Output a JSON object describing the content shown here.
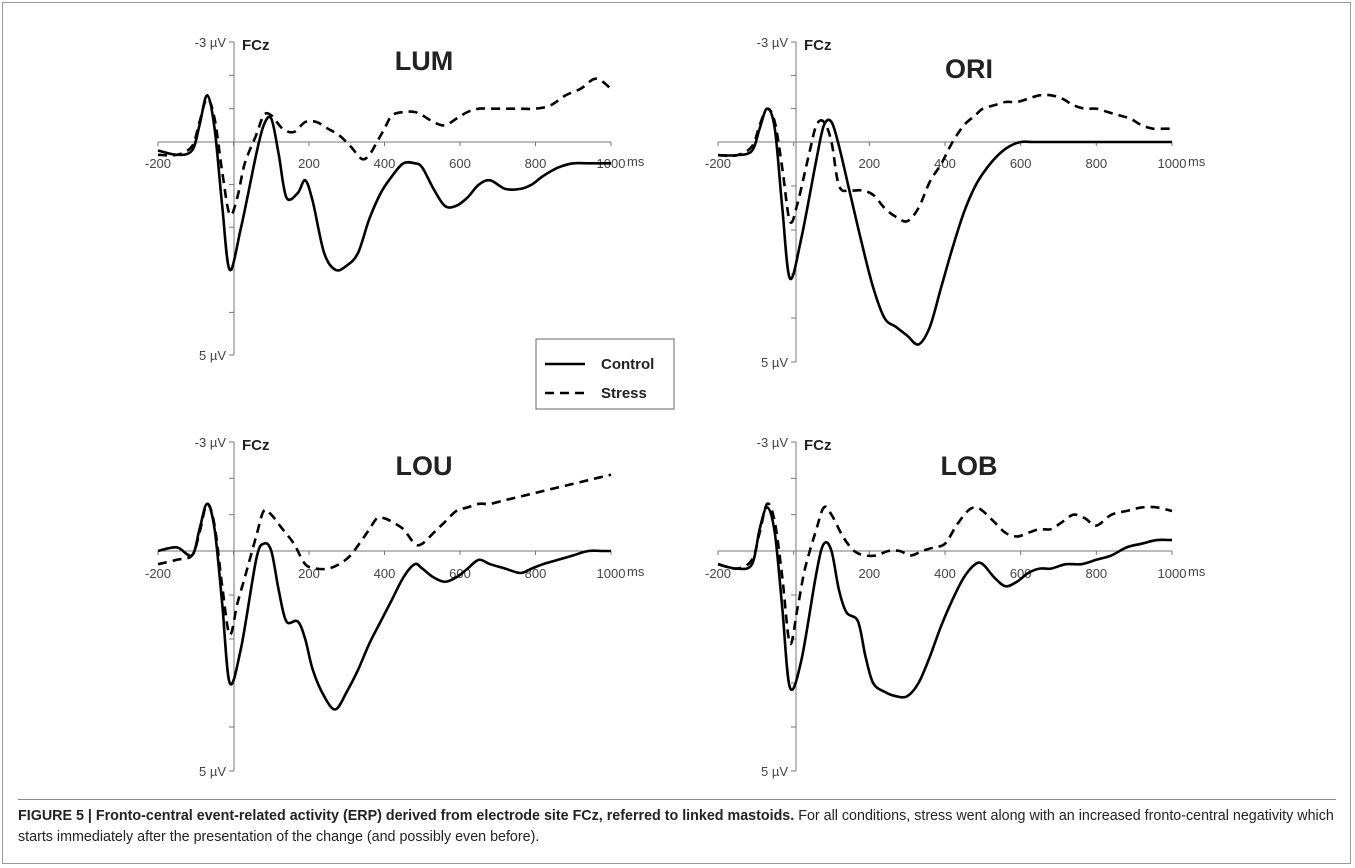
{
  "chart_data": [
    {
      "type": "line",
      "title": "LUM",
      "site_label": "FCz",
      "y_top_label": "-3 µV",
      "y_bottom_label": "5 µV",
      "x_unit": "ms",
      "x_ticks": [
        "-200",
        "200",
        "400",
        "600",
        "800",
        "1000"
      ],
      "ylim": [
        -3,
        5
      ],
      "xlim": [
        -200,
        1000
      ],
      "series": [
        {
          "name": "Control",
          "style": "solid",
          "x": [
            -200,
            -150,
            -110,
            -90,
            -70,
            -50,
            -30,
            -10,
            20,
            60,
            80,
            100,
            120,
            140,
            170,
            190,
            210,
            240,
            270,
            300,
            330,
            360,
            390,
            420,
            450,
            480,
            500,
            530,
            560,
            590,
            620,
            650,
            680,
            720,
            760,
            790,
            820,
            860,
            900,
            940,
            980,
            1000
          ],
          "y": [
            0.2,
            0.3,
            0.2,
            -0.5,
            -1.4,
            -0.4,
            1.5,
            3.0,
            2.0,
            0.3,
            -0.5,
            -0.7,
            0.3,
            1.3,
            1.2,
            0.9,
            1.4,
            2.6,
            3.0,
            2.9,
            2.6,
            1.8,
            1.2,
            0.8,
            0.5,
            0.5,
            0.6,
            1.1,
            1.5,
            1.5,
            1.3,
            1.0,
            0.9,
            1.1,
            1.1,
            1.0,
            0.8,
            0.6,
            0.5,
            0.5,
            0.5,
            0.5
          ]
        },
        {
          "name": "Stress",
          "style": "dashed",
          "x": [
            -200,
            -150,
            -110,
            -90,
            -70,
            -50,
            -30,
            -10,
            10,
            30,
            60,
            80,
            100,
            130,
            160,
            190,
            220,
            250,
            280,
            310,
            340,
            360,
            380,
            400,
            420,
            450,
            480,
            500,
            530,
            560,
            590,
            620,
            650,
            680,
            720,
            760,
            800,
            840,
            880,
            920,
            960,
            1000
          ],
          "y": [
            0.3,
            0.3,
            0.1,
            -0.6,
            -1.3,
            -0.7,
            0.7,
            1.7,
            1.3,
            0.5,
            -0.2,
            -0.8,
            -0.8,
            -0.4,
            -0.3,
            -0.6,
            -0.6,
            -0.4,
            -0.2,
            0.1,
            0.4,
            0.3,
            0.0,
            -0.4,
            -0.8,
            -0.9,
            -0.9,
            -0.8,
            -0.6,
            -0.5,
            -0.7,
            -0.9,
            -1.0,
            -1.0,
            -1.0,
            -1.0,
            -1.0,
            -1.1,
            -1.4,
            -1.6,
            -1.9,
            -1.6
          ]
        }
      ]
    },
    {
      "type": "line",
      "title": "ORI",
      "site_label": "FCz",
      "y_top_label": "-3 µV",
      "y_bottom_label": "5 µV",
      "x_unit": "ms",
      "x_ticks": [
        "-200",
        "200",
        "400",
        "600",
        "800",
        "1000"
      ],
      "ylim": [
        -3,
        5
      ],
      "xlim": [
        -200,
        1000
      ],
      "series": [
        {
          "name": "Control",
          "style": "solid",
          "x": [
            -200,
            -150,
            -110,
            -90,
            -70,
            -50,
            -30,
            -10,
            20,
            60,
            80,
            100,
            120,
            150,
            180,
            210,
            240,
            270,
            300,
            330,
            360,
            390,
            420,
            450,
            480,
            510,
            540,
            570,
            600,
            630,
            660,
            700,
            740,
            780,
            820,
            860,
            900,
            940,
            980,
            1000
          ],
          "y": [
            0.3,
            0.3,
            0.2,
            -0.4,
            -1.0,
            -0.4,
            1.5,
            3.1,
            2.2,
            0.4,
            -0.5,
            -0.6,
            0.1,
            1.2,
            2.3,
            3.3,
            4.0,
            4.2,
            4.4,
            4.6,
            4.2,
            3.3,
            2.4,
            1.6,
            1.0,
            0.6,
            0.3,
            0.1,
            0.0,
            0.0,
            0.0,
            0.0,
            0.0,
            0.0,
            0.0,
            0.0,
            0.0,
            0.0,
            0.0,
            0.0
          ]
        },
        {
          "name": "Stress",
          "style": "dashed",
          "x": [
            -200,
            -150,
            -110,
            -90,
            -70,
            -50,
            -30,
            -10,
            10,
            40,
            60,
            80,
            100,
            120,
            150,
            180,
            210,
            240,
            270,
            300,
            330,
            360,
            390,
            420,
            450,
            480,
            500,
            530,
            560,
            590,
            620,
            650,
            680,
            710,
            740,
            770,
            800,
            830,
            860,
            890,
            920,
            950,
            980,
            1000
          ],
          "y": [
            0.3,
            0.3,
            0.1,
            -0.5,
            -1.0,
            -0.6,
            0.6,
            1.8,
            1.4,
            0.3,
            -0.5,
            -0.6,
            0.0,
            1.0,
            1.1,
            1.1,
            1.2,
            1.5,
            1.7,
            1.8,
            1.5,
            0.9,
            0.5,
            0.0,
            -0.5,
            -0.8,
            -1.0,
            -1.1,
            -1.2,
            -1.2,
            -1.3,
            -1.4,
            -1.4,
            -1.3,
            -1.1,
            -1.0,
            -1.0,
            -0.9,
            -0.8,
            -0.7,
            -0.5,
            -0.4,
            -0.4,
            -0.4
          ]
        }
      ]
    },
    {
      "type": "line",
      "title": "LOU",
      "site_label": "FCz",
      "y_top_label": "-3 µV",
      "y_bottom_label": "5 µV",
      "x_unit": "ms",
      "x_ticks": [
        "-200",
        "200",
        "400",
        "600",
        "800",
        "1000"
      ],
      "ylim": [
        -3,
        5
      ],
      "xlim": [
        -200,
        1000
      ],
      "series": [
        {
          "name": "Control",
          "style": "solid",
          "x": [
            -200,
            -150,
            -110,
            -90,
            -70,
            -50,
            -30,
            -10,
            20,
            60,
            80,
            100,
            120,
            140,
            170,
            190,
            210,
            240,
            270,
            300,
            330,
            360,
            390,
            420,
            450,
            480,
            500,
            530,
            560,
            590,
            620,
            650,
            680,
            720,
            760,
            790,
            820,
            860,
            900,
            940,
            980,
            1000
          ],
          "y": [
            0.0,
            -0.1,
            0.1,
            -0.6,
            -1.3,
            -0.6,
            1.2,
            3.0,
            2.2,
            0.2,
            -0.2,
            0.0,
            0.9,
            1.6,
            1.6,
            2.0,
            2.7,
            3.3,
            3.6,
            3.2,
            2.7,
            2.1,
            1.6,
            1.1,
            0.6,
            0.3,
            0.4,
            0.6,
            0.7,
            0.6,
            0.4,
            0.2,
            0.3,
            0.4,
            0.5,
            0.4,
            0.3,
            0.2,
            0.1,
            0.0,
            0.0,
            0.0
          ]
        },
        {
          "name": "Stress",
          "style": "dashed",
          "x": [
            -200,
            -150,
            -110,
            -90,
            -70,
            -50,
            -30,
            -10,
            10,
            30,
            60,
            80,
            100,
            130,
            160,
            190,
            220,
            250,
            280,
            310,
            340,
            360,
            380,
            400,
            420,
            450,
            480,
            500,
            530,
            560,
            590,
            620,
            650,
            680,
            720,
            760,
            800,
            840,
            880,
            920,
            960,
            1000
          ],
          "y": [
            0.3,
            0.2,
            0.1,
            -0.5,
            -1.3,
            -0.7,
            0.8,
            1.9,
            1.2,
            0.6,
            -0.4,
            -1.1,
            -1.0,
            -0.6,
            -0.2,
            0.3,
            0.4,
            0.4,
            0.3,
            0.1,
            -0.3,
            -0.6,
            -0.9,
            -0.9,
            -0.8,
            -0.6,
            -0.2,
            -0.2,
            -0.5,
            -0.8,
            -1.1,
            -1.2,
            -1.3,
            -1.3,
            -1.4,
            -1.5,
            -1.6,
            -1.7,
            -1.8,
            -1.9,
            -2.0,
            -2.1
          ]
        }
      ]
    },
    {
      "type": "line",
      "title": "LOB",
      "site_label": "FCz",
      "y_top_label": "-3 µV",
      "y_bottom_label": "5 µV",
      "x_unit": "ms",
      "x_ticks": [
        "-200",
        "200",
        "400",
        "600",
        "800",
        "1000"
      ],
      "ylim": [
        -3,
        5
      ],
      "xlim": [
        -200,
        1000
      ],
      "series": [
        {
          "name": "Control",
          "style": "solid",
          "x": [
            -200,
            -150,
            -110,
            -90,
            -70,
            -50,
            -30,
            -10,
            20,
            60,
            80,
            100,
            120,
            140,
            170,
            190,
            210,
            240,
            270,
            300,
            330,
            360,
            390,
            420,
            450,
            480,
            500,
            530,
            560,
            590,
            620,
            650,
            680,
            720,
            760,
            800,
            840,
            880,
            920,
            960,
            1000
          ],
          "y": [
            0.3,
            0.4,
            0.3,
            -0.6,
            -1.2,
            -0.5,
            1.3,
            3.1,
            2.5,
            0.5,
            -0.2,
            0.0,
            0.9,
            1.4,
            1.6,
            2.4,
            3.0,
            3.2,
            3.3,
            3.3,
            3.0,
            2.4,
            1.7,
            1.1,
            0.6,
            0.3,
            0.3,
            0.6,
            0.8,
            0.7,
            0.5,
            0.4,
            0.4,
            0.3,
            0.3,
            0.2,
            0.1,
            -0.1,
            -0.2,
            -0.3,
            -0.3
          ]
        },
        {
          "name": "Stress",
          "style": "dashed",
          "x": [
            -200,
            -150,
            -110,
            -90,
            -70,
            -50,
            -30,
            -10,
            10,
            30,
            60,
            80,
            100,
            130,
            160,
            190,
            220,
            250,
            280,
            310,
            340,
            370,
            400,
            430,
            460,
            480,
            500,
            530,
            560,
            590,
            620,
            650,
            680,
            710,
            740,
            770,
            800,
            840,
            880,
            920,
            960,
            1000
          ],
          "y": [
            0.3,
            0.4,
            0.2,
            -0.5,
            -1.3,
            -0.8,
            0.6,
            2.1,
            1.3,
            0.4,
            -0.6,
            -1.2,
            -1.0,
            -0.4,
            0.0,
            0.1,
            0.1,
            0.0,
            0.0,
            0.1,
            0.0,
            -0.1,
            -0.2,
            -0.7,
            -1.1,
            -1.2,
            -1.1,
            -0.8,
            -0.5,
            -0.4,
            -0.5,
            -0.6,
            -0.6,
            -0.8,
            -1.0,
            -0.9,
            -0.7,
            -1.0,
            -1.1,
            -1.2,
            -1.2,
            -1.1
          ]
        }
      ]
    }
  ],
  "legend": {
    "items": [
      {
        "label": "Control",
        "style": "solid"
      },
      {
        "label": "Stress",
        "style": "dashed"
      }
    ]
  },
  "caption": {
    "bold": "FIGURE 5 | Fronto-central event-related activity (ERP) derived from electrode site FCz, referred to linked mastoids.",
    "text": " For all conditions, stress went along with an increased fronto-central negativity which starts immediately after the presentation of the change (and possibly even before)."
  }
}
